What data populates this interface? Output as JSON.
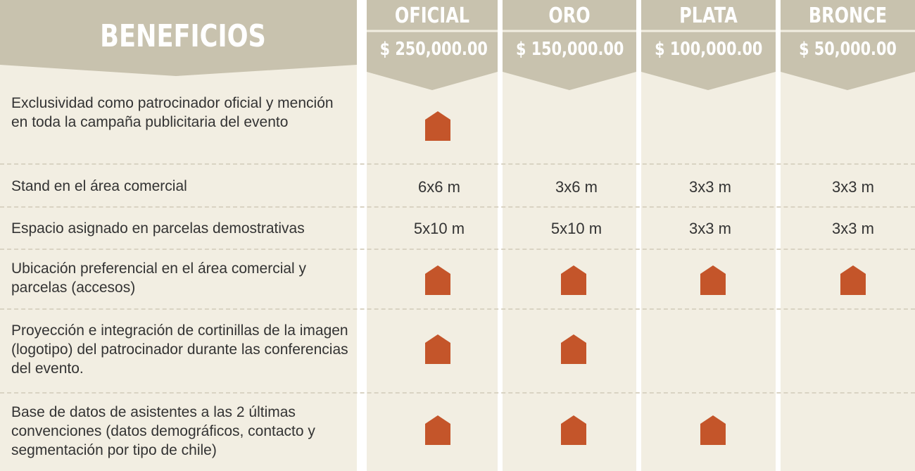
{
  "header": {
    "title": "BENEFICIOS",
    "tiers": [
      {
        "name": "OFICIAL",
        "price": "$ 250,000.00"
      },
      {
        "name": "ORO",
        "price": "$ 150,000.00"
      },
      {
        "name": "PLATA",
        "price": "$ 100,000.00"
      },
      {
        "name": "BRONCE",
        "price": "$ 50,000.00"
      }
    ]
  },
  "rows": [
    {
      "benefit": "Exclusividad como patrocinador oficial y mención en toda la campaña publicitaria del evento",
      "values": [
        "check",
        "",
        "",
        ""
      ]
    },
    {
      "benefit": "Stand en el área comercial",
      "values": [
        "6x6 m",
        "3x6 m",
        "3x3 m",
        "3x3 m"
      ]
    },
    {
      "benefit": "Espacio asignado en parcelas demostrativas",
      "values": [
        "5x10 m",
        "5x10 m",
        "3x3 m",
        "3x3 m"
      ]
    },
    {
      "benefit": "Ubicación preferencial en el área comercial y parcelas (accesos)",
      "values": [
        "check",
        "check",
        "check",
        "check"
      ]
    },
    {
      "benefit": "Proyección e integración de cortinillas de la imagen (logotipo) del patrocinador durante las conferencias del evento.",
      "values": [
        "check",
        "check",
        "",
        ""
      ]
    },
    {
      "benefit": "Base de datos de asistentes a las 2 últimas convenciones  (datos demográficos, contacto y segmentación por tipo de chile)",
      "values": [
        "check",
        "check",
        "check",
        ""
      ]
    }
  ],
  "colors": {
    "header_bg": "#c8c2ae",
    "panel_bg": "#f2eee2",
    "mark": "#c4552a",
    "text": "#333333"
  },
  "icons": {
    "included": "house-pentagon-icon"
  }
}
